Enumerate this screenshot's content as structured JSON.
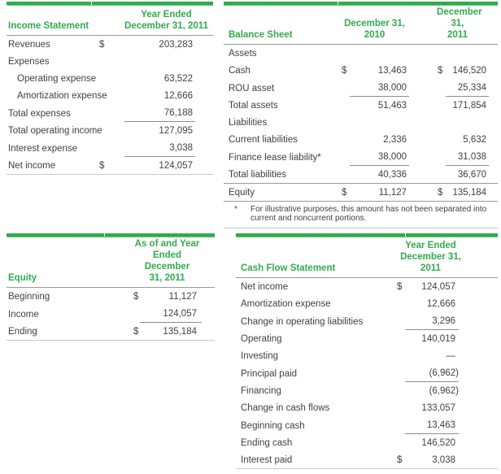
{
  "colors": {
    "accent_green": "#31ab4d",
    "text": "#404040",
    "line_dark": "#9a9a9a",
    "line_light": "#c9c9c9"
  },
  "income_statement": {
    "title": "Income Statement",
    "period_header": "Year Ended\nDecember 31, 2011",
    "rows": [
      {
        "label": "Revenues",
        "currency": "$",
        "value": "203,283"
      },
      {
        "label": "Expenses"
      },
      {
        "label": "Operating expense",
        "value": "63,522"
      },
      {
        "label": "Amortization expense",
        "value": "12,666"
      },
      {
        "label": "Total expenses",
        "value": "76,188"
      },
      {
        "label": "Total operating income",
        "value": "127,095"
      },
      {
        "label": "Interest expense",
        "value": "3,038"
      },
      {
        "label": "Net income",
        "currency": "$",
        "value": "124,057"
      }
    ]
  },
  "balance_sheet": {
    "title": "Balance Sheet",
    "col1_header": "December 31,\n2010",
    "col2_header": "December 31,\n2011",
    "rows": [
      {
        "label": "Assets"
      },
      {
        "label": "Cash",
        "currency1": "$",
        "value1": "13,463",
        "currency2": "$",
        "value2": "146,520"
      },
      {
        "label": "ROU asset",
        "value1": "38,000",
        "value2": "25,334"
      },
      {
        "label": "Total assets",
        "value1": "51,463",
        "value2": "171,854"
      },
      {
        "label": "Liabilities"
      },
      {
        "label": "Current liabilities",
        "value1": "2,336",
        "value2": "5,632"
      },
      {
        "label": "Finance lease liability*",
        "value1": "38,000",
        "value2": "31,038"
      },
      {
        "label": "Total liabilities",
        "value1": "40,336",
        "value2": "36,670"
      },
      {
        "label": "Equity",
        "currency1": "$",
        "value1": "11,127",
        "currency2": "$",
        "value2": "135,184"
      }
    ],
    "footnote_marker": "*",
    "footnote": "For illustrative purposes, this amount has not been separated into current and noncurrent portions."
  },
  "equity_statement": {
    "title": "Equity",
    "period_header": "As of and Year\nEnded December\n31, 2011",
    "rows": [
      {
        "label": "Beginning",
        "currency": "$",
        "value": "11,127"
      },
      {
        "label": "Income",
        "value": "124,057"
      },
      {
        "label": "Ending",
        "currency": "$",
        "value": "135,184"
      }
    ]
  },
  "cash_flow_statement": {
    "title": "Cash Flow Statement",
    "period_header": "Year Ended\nDecember 31, 2011",
    "rows": [
      {
        "label": "Net income",
        "currency": "$",
        "value": "124,057"
      },
      {
        "label": "Amortization expense",
        "value": "12,666"
      },
      {
        "label": "Change in operating liabilities",
        "value": "3,296"
      },
      {
        "label": "Operating",
        "value": "140,019"
      },
      {
        "label": "Investing",
        "value": "—"
      },
      {
        "label": "Principal paid",
        "value": "(6,962)"
      },
      {
        "label": "Financing",
        "value": "(6,962)"
      },
      {
        "label": "Change in cash flows",
        "value": "133,057"
      },
      {
        "label": "Beginning cash",
        "value": "13,463"
      },
      {
        "label": "Ending cash",
        "value": "146,520"
      },
      {
        "label": "Interest paid",
        "currency": "$",
        "value": "3,038"
      }
    ]
  }
}
